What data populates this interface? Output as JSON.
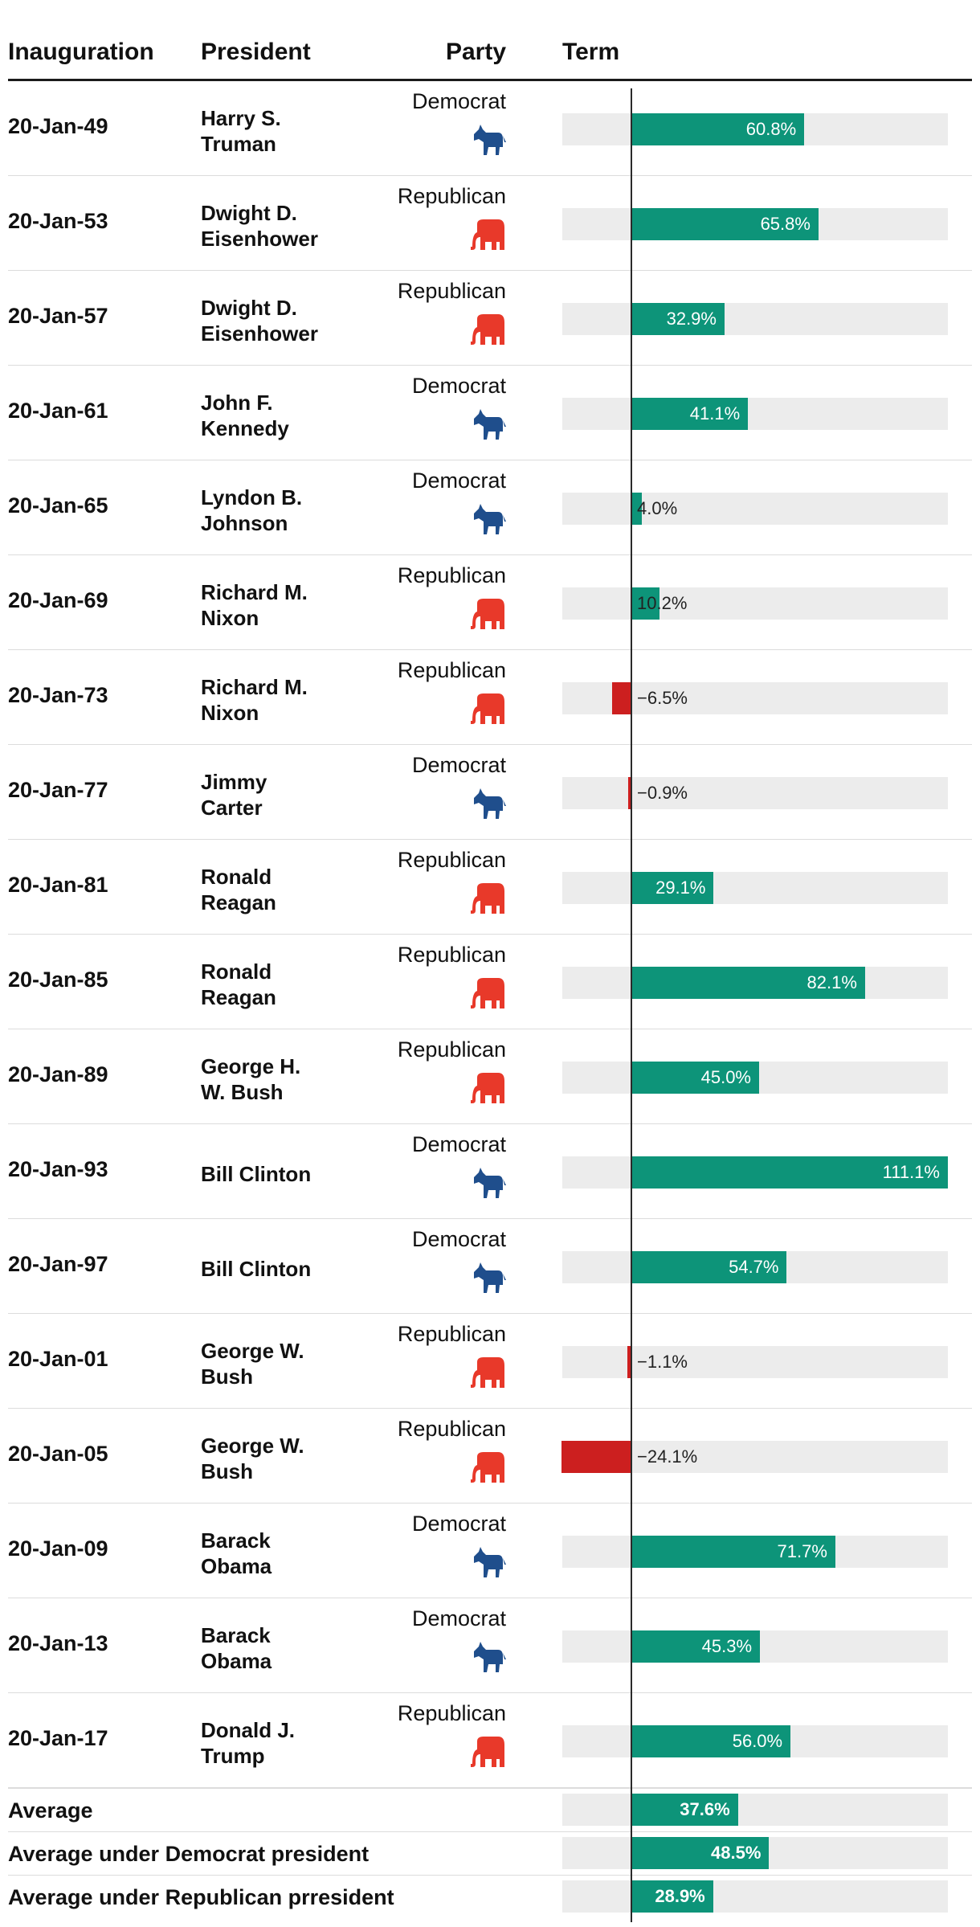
{
  "headers": {
    "inauguration": "Inauguration",
    "president": "President",
    "party": "Party",
    "term": "Term"
  },
  "colors": {
    "positive": "#0d9479",
    "negative": "#cc1f1f",
    "democrat_icon": "#1f4e8c",
    "republican_icon": "#e8392a",
    "track": "#ececec"
  },
  "party_icons": {
    "Democrat": "donkey-icon",
    "Republican": "elephant-icon"
  },
  "chart_data": {
    "type": "bar",
    "orientation": "horizontal",
    "xlim": [
      -21.3,
      111.1
    ],
    "unit": "%",
    "rows": [
      {
        "inauguration": "20-Jan-49",
        "president": [
          "Harry S.",
          "Truman"
        ],
        "party": "Democrat",
        "value": 60.8,
        "label": "60.8%"
      },
      {
        "inauguration": "20-Jan-53",
        "president": [
          "Dwight D.",
          "Eisenhower"
        ],
        "party": "Republican",
        "value": 65.8,
        "label": "65.8%"
      },
      {
        "inauguration": "20-Jan-57",
        "president": [
          "Dwight D.",
          "Eisenhower"
        ],
        "party": "Republican",
        "value": 32.9,
        "label": "32.9%"
      },
      {
        "inauguration": "20-Jan-61",
        "president": [
          "John F.",
          "Kennedy"
        ],
        "party": "Democrat",
        "value": 41.1,
        "label": "41.1%"
      },
      {
        "inauguration": "20-Jan-65",
        "president": [
          "Lyndon B.",
          "Johnson"
        ],
        "party": "Democrat",
        "value": 4.0,
        "label": "4.0%"
      },
      {
        "inauguration": "20-Jan-69",
        "president": [
          "Richard M.",
          "Nixon"
        ],
        "party": "Republican",
        "value": 10.2,
        "label": "10.2%"
      },
      {
        "inauguration": "20-Jan-73",
        "president": [
          "Richard M.",
          "Nixon"
        ],
        "party": "Republican",
        "value": -6.5,
        "label": "−6.5%"
      },
      {
        "inauguration": "20-Jan-77",
        "president": [
          "Jimmy",
          "Carter"
        ],
        "party": "Democrat",
        "value": -0.9,
        "label": "−0.9%"
      },
      {
        "inauguration": "20-Jan-81",
        "president": [
          "Ronald",
          "Reagan"
        ],
        "party": "Republican",
        "value": 29.1,
        "label": "29.1%"
      },
      {
        "inauguration": "20-Jan-85",
        "president": [
          "Ronald",
          "Reagan"
        ],
        "party": "Republican",
        "value": 82.1,
        "label": "82.1%"
      },
      {
        "inauguration": "20-Jan-89",
        "president": [
          "George H.",
          "W. Bush"
        ],
        "party": "Republican",
        "value": 45.0,
        "label": "45.0%"
      },
      {
        "inauguration": "20-Jan-93",
        "president": [
          "Bill Clinton"
        ],
        "party": "Democrat",
        "value": 111.1,
        "label": "111.1%"
      },
      {
        "inauguration": "20-Jan-97",
        "president": [
          "Bill Clinton"
        ],
        "party": "Democrat",
        "value": 54.7,
        "label": "54.7%"
      },
      {
        "inauguration": "20-Jan-01",
        "president": [
          "George W.",
          "Bush"
        ],
        "party": "Republican",
        "value": -1.1,
        "label": "−1.1%"
      },
      {
        "inauguration": "20-Jan-05",
        "president": [
          "George W.",
          "Bush"
        ],
        "party": "Republican",
        "value": -24.1,
        "label": "−24.1%"
      },
      {
        "inauguration": "20-Jan-09",
        "president": [
          "Barack",
          "Obama"
        ],
        "party": "Democrat",
        "value": 71.7,
        "label": "71.7%"
      },
      {
        "inauguration": "20-Jan-13",
        "president": [
          "Barack",
          "Obama"
        ],
        "party": "Democrat",
        "value": 45.3,
        "label": "45.3%"
      },
      {
        "inauguration": "20-Jan-17",
        "president": [
          "Donald J.",
          "Trump"
        ],
        "party": "Republican",
        "value": 56.0,
        "label": "56.0%"
      }
    ],
    "averages": [
      {
        "label": "Average",
        "value": 37.6,
        "value_label": "37.6%"
      },
      {
        "label": "Average under Democrat president",
        "value": 48.5,
        "value_label": "48.5%"
      },
      {
        "label": "Average under Republican prresident",
        "value": 28.9,
        "value_label": "28.9%"
      }
    ]
  }
}
